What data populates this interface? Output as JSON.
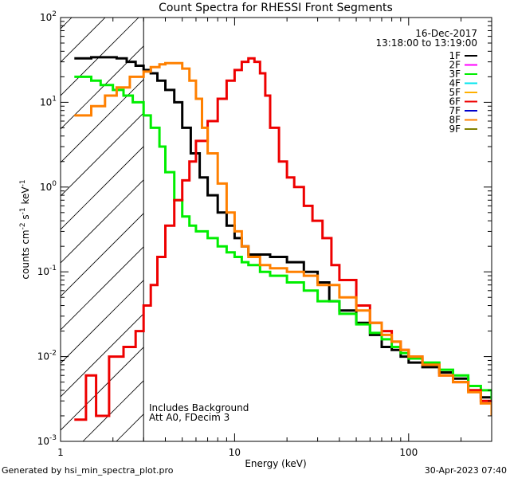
{
  "chart_data": {
    "type": "line",
    "title": "Count Spectra for RHESSI Front Segments",
    "xlabel": "Energy (keV)",
    "ylabel": "counts cm",
    "ylabel_sup1": "-2",
    "ylabel_mid": " s",
    "ylabel_sup2": "-1",
    "ylabel_mid2": " keV",
    "ylabel_sup3": "-1",
    "x_scale": "log",
    "y_scale": "log",
    "xlim": [
      1,
      300
    ],
    "ylim": [
      0.001,
      100
    ],
    "x_ticks": [
      {
        "value": 1,
        "label": "1"
      },
      {
        "value": 10,
        "label": "10"
      },
      {
        "value": 100,
        "label": "100"
      }
    ],
    "y_ticks": [
      {
        "value": 0.001,
        "base": "10",
        "exp": "-3"
      },
      {
        "value": 0.01,
        "base": "10",
        "exp": "-2"
      },
      {
        "value": 0.1,
        "base": "10",
        "exp": "-1"
      },
      {
        "value": 1,
        "base": "10",
        "exp": "0"
      },
      {
        "value": 10,
        "base": "10",
        "exp": "1"
      },
      {
        "value": 100,
        "base": "10",
        "exp": "2"
      }
    ],
    "date": "16-Dec-2017",
    "time_range": "13:18:00 to 13:19:00",
    "hatched_below_kev": 3,
    "annotations": [
      "Includes Background",
      "Att A0, FDecim 3"
    ],
    "legend": [
      {
        "name": "1F",
        "color": "#000000"
      },
      {
        "name": "2F",
        "color": "#ff00ff"
      },
      {
        "name": "3F",
        "color": "#00ee00"
      },
      {
        "name": "4F",
        "color": "#00e5ee"
      },
      {
        "name": "5F",
        "color": "#ffb000"
      },
      {
        "name": "6F",
        "color": "#ee0000"
      },
      {
        "name": "7F",
        "color": "#0000cc"
      },
      {
        "name": "8F",
        "color": "#ff8000"
      },
      {
        "name": "9F",
        "color": "#808000"
      }
    ],
    "series": [
      {
        "name": "1F",
        "color": "#000000",
        "points": [
          [
            1.2,
            33
          ],
          [
            1.5,
            34
          ],
          [
            1.8,
            34
          ],
          [
            2.1,
            33
          ],
          [
            2.4,
            30
          ],
          [
            2.7,
            27
          ],
          [
            3.0,
            24
          ],
          [
            3.3,
            22
          ],
          [
            3.6,
            18
          ],
          [
            4.0,
            14
          ],
          [
            4.5,
            10
          ],
          [
            5.0,
            5
          ],
          [
            5.6,
            2.5
          ],
          [
            6.3,
            1.3
          ],
          [
            7.0,
            0.8
          ],
          [
            8.0,
            0.5
          ],
          [
            9.0,
            0.35
          ],
          [
            10,
            0.25
          ],
          [
            11,
            0.2
          ],
          [
            12,
            0.16
          ],
          [
            14,
            0.16
          ],
          [
            16,
            0.15
          ],
          [
            20,
            0.13
          ],
          [
            25,
            0.1
          ],
          [
            30,
            0.075
          ],
          [
            35,
            0.045
          ],
          [
            40,
            0.035
          ],
          [
            50,
            0.025
          ],
          [
            60,
            0.018
          ],
          [
            70,
            0.013
          ],
          [
            80,
            0.012
          ],
          [
            90,
            0.01
          ],
          [
            100,
            0.0085
          ],
          [
            120,
            0.0075
          ],
          [
            150,
            0.0065
          ],
          [
            180,
            0.0055
          ],
          [
            220,
            0.004
          ],
          [
            260,
            0.0033
          ],
          [
            300,
            0.0025
          ]
        ]
      },
      {
        "name": "3F",
        "color": "#00ee00",
        "points": [
          [
            1.2,
            20
          ],
          [
            1.5,
            18
          ],
          [
            1.7,
            16
          ],
          [
            2.0,
            14
          ],
          [
            2.3,
            12
          ],
          [
            2.6,
            10
          ],
          [
            3.0,
            7
          ],
          [
            3.3,
            5
          ],
          [
            3.7,
            3
          ],
          [
            4.0,
            1.5
          ],
          [
            4.5,
            0.7
          ],
          [
            5.0,
            0.45
          ],
          [
            5.5,
            0.35
          ],
          [
            6.0,
            0.3
          ],
          [
            7.0,
            0.25
          ],
          [
            8.0,
            0.2
          ],
          [
            9.0,
            0.17
          ],
          [
            10,
            0.15
          ],
          [
            11,
            0.13
          ],
          [
            12,
            0.12
          ],
          [
            14,
            0.1
          ],
          [
            16,
            0.09
          ],
          [
            20,
            0.075
          ],
          [
            25,
            0.06
          ],
          [
            30,
            0.045
          ],
          [
            40,
            0.032
          ],
          [
            50,
            0.024
          ],
          [
            60,
            0.019
          ],
          [
            70,
            0.016
          ],
          [
            80,
            0.013
          ],
          [
            90,
            0.011
          ],
          [
            100,
            0.0095
          ],
          [
            120,
            0.0085
          ],
          [
            150,
            0.007
          ],
          [
            180,
            0.006
          ],
          [
            220,
            0.0045
          ],
          [
            260,
            0.004
          ],
          [
            300,
            0.003
          ]
        ]
      },
      {
        "name": "6F",
        "color": "#ee0000",
        "points": [
          [
            1.2,
            0.0018
          ],
          [
            1.4,
            0.006
          ],
          [
            1.6,
            0.002
          ],
          [
            1.9,
            0.01
          ],
          [
            2.3,
            0.013
          ],
          [
            2.7,
            0.02
          ],
          [
            3.0,
            0.04
          ],
          [
            3.3,
            0.07
          ],
          [
            3.6,
            0.15
          ],
          [
            4.0,
            0.35
          ],
          [
            4.5,
            0.7
          ],
          [
            5.0,
            1.2
          ],
          [
            5.5,
            2
          ],
          [
            6.0,
            3.5
          ],
          [
            7.0,
            6
          ],
          [
            8.0,
            11
          ],
          [
            9.0,
            18
          ],
          [
            10,
            24
          ],
          [
            11,
            30
          ],
          [
            12,
            33
          ],
          [
            13,
            30
          ],
          [
            14,
            22
          ],
          [
            15,
            12
          ],
          [
            16,
            5
          ],
          [
            18,
            2
          ],
          [
            20,
            1.3
          ],
          [
            22,
            1.0
          ],
          [
            25,
            0.6
          ],
          [
            28,
            0.4
          ],
          [
            32,
            0.25
          ],
          [
            36,
            0.12
          ],
          [
            40,
            0.08
          ],
          [
            50,
            0.04
          ],
          [
            60,
            0.025
          ],
          [
            70,
            0.02
          ],
          [
            80,
            0.015
          ],
          [
            90,
            0.012
          ],
          [
            100,
            0.01
          ],
          [
            120,
            0.008
          ],
          [
            150,
            0.006
          ],
          [
            180,
            0.005
          ],
          [
            220,
            0.004
          ],
          [
            260,
            0.003
          ],
          [
            300,
            0.0025
          ]
        ]
      },
      {
        "name": "8F",
        "color": "#ff8000",
        "points": [
          [
            1.2,
            7
          ],
          [
            1.5,
            9
          ],
          [
            1.8,
            12
          ],
          [
            2.1,
            15
          ],
          [
            2.5,
            20
          ],
          [
            3.0,
            23
          ],
          [
            3.3,
            26
          ],
          [
            3.7,
            28
          ],
          [
            4.0,
            29
          ],
          [
            4.5,
            29
          ],
          [
            5.0,
            25
          ],
          [
            5.5,
            18
          ],
          [
            6.0,
            11
          ],
          [
            6.5,
            5
          ],
          [
            7.0,
            2.5
          ],
          [
            8.0,
            1.1
          ],
          [
            9.0,
            0.5
          ],
          [
            10,
            0.3
          ],
          [
            11,
            0.2
          ],
          [
            12,
            0.15
          ],
          [
            14,
            0.12
          ],
          [
            16,
            0.11
          ],
          [
            20,
            0.1
          ],
          [
            25,
            0.09
          ],
          [
            30,
            0.07
          ],
          [
            40,
            0.05
          ],
          [
            50,
            0.035
          ],
          [
            60,
            0.025
          ],
          [
            70,
            0.018
          ],
          [
            80,
            0.015
          ],
          [
            90,
            0.012
          ],
          [
            100,
            0.01
          ],
          [
            120,
            0.008
          ],
          [
            150,
            0.006
          ],
          [
            180,
            0.005
          ],
          [
            220,
            0.0038
          ],
          [
            260,
            0.0028
          ],
          [
            300,
            0.002
          ]
        ]
      }
    ]
  },
  "footer": {
    "generated_by": "Generated by hsi_min_spectra_plot.pro",
    "timestamp": "30-Apr-2023 07:40"
  }
}
